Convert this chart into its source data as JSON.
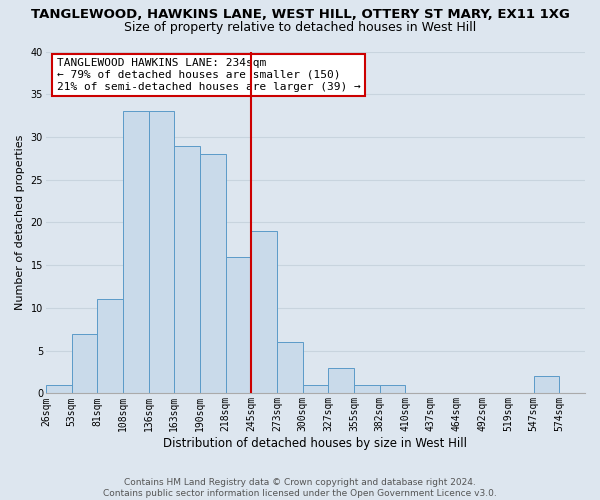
{
  "title": "TANGLEWOOD, HAWKINS LANE, WEST HILL, OTTERY ST MARY, EX11 1XG",
  "subtitle": "Size of property relative to detached houses in West Hill",
  "xlabel": "Distribution of detached houses by size in West Hill",
  "ylabel": "Number of detached properties",
  "bin_labels": [
    "26sqm",
    "53sqm",
    "81sqm",
    "108sqm",
    "136sqm",
    "163sqm",
    "190sqm",
    "218sqm",
    "245sqm",
    "273sqm",
    "300sqm",
    "327sqm",
    "355sqm",
    "382sqm",
    "410sqm",
    "437sqm",
    "464sqm",
    "492sqm",
    "519sqm",
    "547sqm",
    "574sqm"
  ],
  "counts": [
    1,
    7,
    11,
    33,
    33,
    29,
    28,
    16,
    19,
    6,
    1,
    3,
    1,
    1,
    0,
    0,
    0,
    0,
    0,
    2,
    0
  ],
  "bar_facecolor": "#c9daea",
  "bar_edgecolor": "#5b9ac8",
  "vline_index": 8,
  "vline_color": "#cc0000",
  "annotation_line1": "TANGLEWOOD HAWKINS LANE: 234sqm",
  "annotation_line2": "← 79% of detached houses are smaller (150)",
  "annotation_line3": "21% of semi-detached houses are larger (39) →",
  "annotation_box_edgecolor": "#cc0000",
  "annotation_box_facecolor": "#ffffff",
  "ylim": [
    0,
    40
  ],
  "yticks": [
    0,
    5,
    10,
    15,
    20,
    25,
    30,
    35,
    40
  ],
  "grid_color": "#c8d4de",
  "background_color": "#dde6ef",
  "footer_text": "Contains HM Land Registry data © Crown copyright and database right 2024.\nContains public sector information licensed under the Open Government Licence v3.0.",
  "title_fontsize": 9.5,
  "subtitle_fontsize": 9,
  "xlabel_fontsize": 8.5,
  "ylabel_fontsize": 8,
  "tick_fontsize": 7,
  "annotation_fontsize": 8,
  "footer_fontsize": 6.5
}
